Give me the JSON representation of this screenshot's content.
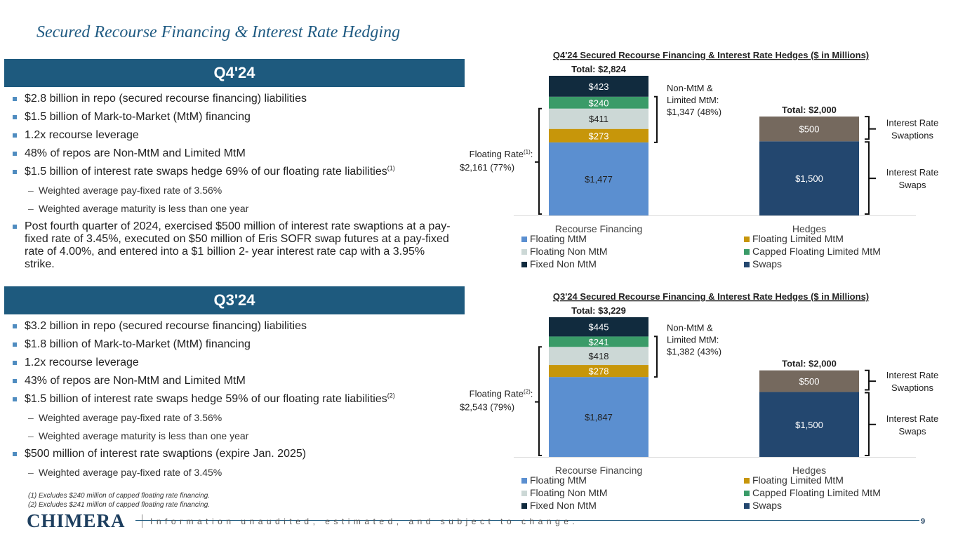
{
  "page": {
    "title": "Secured Recourse Financing & Interest Rate Hedging",
    "page_number": "9",
    "logo_text": "CHIMERA",
    "disclaimer": "Information unaudited, estimated, and subject to change.",
    "footnotes": [
      "(1) Excludes $240 million of capped floating rate financing.",
      "(2) Excludes $241 million of capped floating rate financing."
    ]
  },
  "q4": {
    "banner": "Q4'24",
    "bullets": [
      {
        "text": "$2.8 billion in repo (secured recourse financing) liabilities",
        "sub": false
      },
      {
        "text": "$1.5 billion of Mark-to-Market (MtM) financing",
        "sub": false
      },
      {
        "text": "1.2x recourse leverage",
        "sub": false
      },
      {
        "text": "48% of repos are Non-MtM and Limited MtM",
        "sub": false
      },
      {
        "text": "$1.5 billion of interest rate swaps hedge 69% of our floating rate liabilities",
        "sup": "(1)",
        "sub": false
      },
      {
        "text": "Weighted average pay-fixed rate of 3.56%",
        "sub": true
      },
      {
        "text": "Weighted average maturity is less than one year",
        "sub": true
      },
      {
        "text": "Post fourth quarter of 2024, exercised $500 million of interest rate swaptions at a pay-fixed rate of 3.45%, executed on $50 million of Eris SOFR swap futures at a pay-fixed rate of 4.00%, and entered into a $1 billion 2- year interest rate cap with a 3.95%  strike.",
        "sub": false
      }
    ]
  },
  "q3": {
    "banner": "Q3'24",
    "bullets": [
      {
        "text": "$3.2 billion in repo (secured recourse financing) liabilities",
        "sub": false
      },
      {
        "text": "$1.8 billion of Mark-to-Market (MtM) financing",
        "sub": false
      },
      {
        "text": "1.2x recourse leverage",
        "sub": false
      },
      {
        "text": "43% of repos are Non-MtM and Limited MtM",
        "sub": false
      },
      {
        "text": "$1.5 billion of interest rate swaps hedge 59% of our floating rate liabilities",
        "sup": "(2)",
        "sub": false
      },
      {
        "text": "Weighted average pay-fixed rate of 3.56%",
        "sub": true
      },
      {
        "text": "Weighted average maturity is less than one year",
        "sub": true
      },
      {
        "text": "$500 million of interest rate swaptions (expire Jan. 2025)",
        "sub": false
      },
      {
        "text": "Weighted average pay-fixed rate of 3.45%",
        "sub": true
      }
    ]
  },
  "chart_data": [
    {
      "type": "bar",
      "stacked": true,
      "title": "Q4'24 Secured Recourse Financing & Interest Rate Hedges ($ in Millions)",
      "categories": [
        "Recourse Financing",
        "Hedges"
      ],
      "totals": [
        "Total: $2,824",
        "Total: $2,000"
      ],
      "series": [
        {
          "name": "Floating MtM",
          "color": "#5b8fd0",
          "values": [
            1477,
            0
          ],
          "labels": [
            "$1,477",
            ""
          ]
        },
        {
          "name": "Floating Limited MtM",
          "color": "#c7960a",
          "values": [
            273,
            0
          ],
          "labels": [
            "$273",
            ""
          ]
        },
        {
          "name": "Floating Non MtM",
          "color": "#ccd8d6",
          "values": [
            411,
            0
          ],
          "labels": [
            "$411",
            ""
          ]
        },
        {
          "name": "Capped Floating Limited MtM",
          "color": "#3a9b68",
          "values": [
            240,
            0
          ],
          "labels": [
            "$240",
            ""
          ]
        },
        {
          "name": "Fixed Non MtM",
          "color": "#112b3e",
          "values": [
            423,
            0
          ],
          "labels": [
            "$423",
            ""
          ]
        },
        {
          "name": "Swaps",
          "color": "#23476f",
          "values": [
            0,
            1500
          ],
          "labels": [
            "",
            "$1,500"
          ]
        },
        {
          "name": "Swaptions",
          "color": "#75695e",
          "values": [
            0,
            500
          ],
          "labels": [
            "",
            "$500"
          ],
          "legend": false
        }
      ],
      "annotations": {
        "floating_rate_label": "Floating Rate",
        "floating_rate_sup": "(1)",
        "floating_rate_colon": ":",
        "floating_rate_value": "$2,161 (77%)",
        "nonmtm": [
          "Non-MtM &",
          "Limited MtM:",
          "$1,347 (48%)"
        ],
        "swaptions": [
          "Interest Rate",
          "Swaptions"
        ],
        "swaps": [
          "Interest Rate",
          "Swaps"
        ]
      },
      "ylim": [
        0,
        2824
      ]
    },
    {
      "type": "bar",
      "stacked": true,
      "title": "Q3'24 Secured Recourse Financing & Interest Rate Hedges ($ in Millions)",
      "categories": [
        "Recourse Financing",
        "Hedges"
      ],
      "totals": [
        "Total: $3,229",
        "Total: $2,000"
      ],
      "series": [
        {
          "name": "Floating MtM",
          "color": "#5b8fd0",
          "values": [
            1847,
            0
          ],
          "labels": [
            "$1,847",
            ""
          ]
        },
        {
          "name": "Floating Limited MtM",
          "color": "#c7960a",
          "values": [
            278,
            0
          ],
          "labels": [
            "$278",
            ""
          ]
        },
        {
          "name": "Floating Non MtM",
          "color": "#ccd8d6",
          "values": [
            418,
            0
          ],
          "labels": [
            "$418",
            ""
          ]
        },
        {
          "name": "Capped Floating Limited MtM",
          "color": "#3a9b68",
          "values": [
            241,
            0
          ],
          "labels": [
            "$241",
            ""
          ]
        },
        {
          "name": "Fixed Non MtM",
          "color": "#112b3e",
          "values": [
            445,
            0
          ],
          "labels": [
            "$445",
            ""
          ]
        },
        {
          "name": "Swaps",
          "color": "#23476f",
          "values": [
            0,
            1500
          ],
          "labels": [
            "",
            "$1,500"
          ]
        },
        {
          "name": "Swaptions",
          "color": "#75695e",
          "values": [
            0,
            500
          ],
          "labels": [
            "",
            "$500"
          ],
          "legend": false
        }
      ],
      "annotations": {
        "floating_rate_label": "Floating Rate",
        "floating_rate_sup": "(2)",
        "floating_rate_colon": ":",
        "floating_rate_value": "$2,543 (79%)",
        "nonmtm": [
          "Non-MtM &",
          "Limited MtM:",
          "$1,382 (43%)"
        ],
        "swaptions": [
          "Interest Rate",
          "Swaptions"
        ],
        "swaps": [
          "Interest Rate",
          "Swaps"
        ]
      },
      "ylim": [
        0,
        3229
      ]
    }
  ]
}
